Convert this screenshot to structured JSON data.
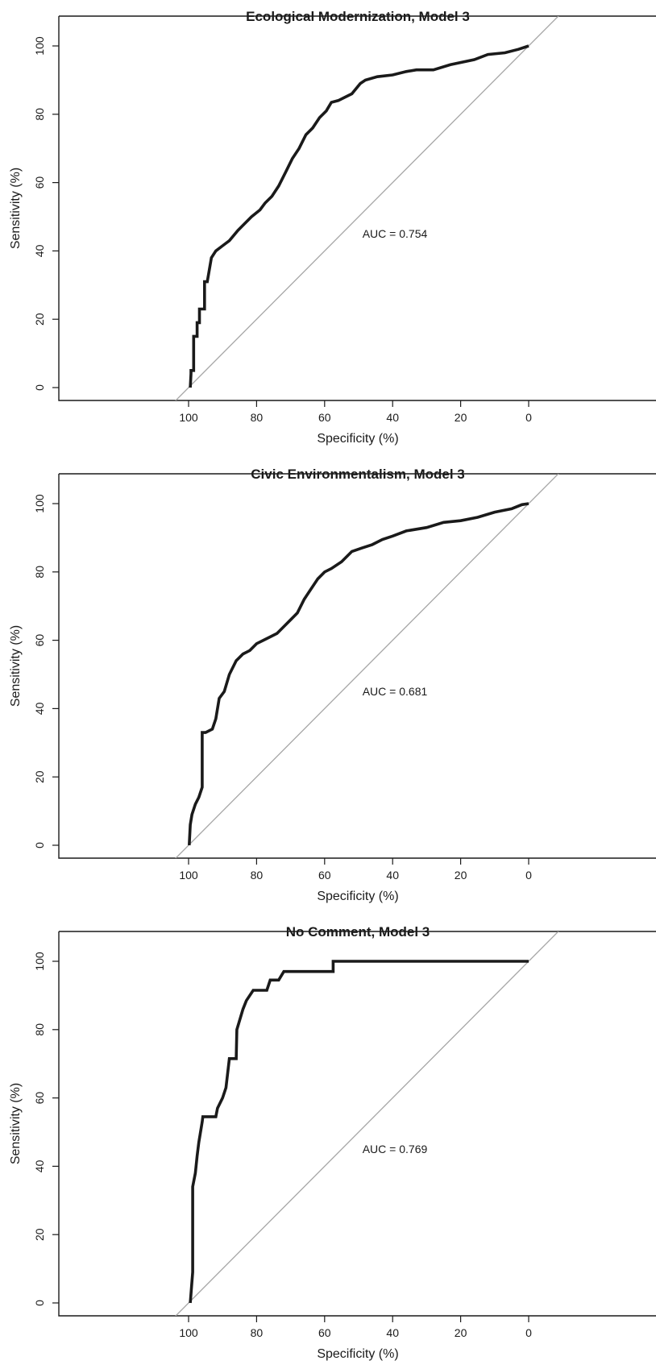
{
  "chart_data": [
    {
      "type": "line",
      "title": "Ecological Modernization, Model 3",
      "xlabel": "Specificity (%)",
      "ylabel": "Sensitivity (%)",
      "xlim": [
        100,
        0
      ],
      "ylim": [
        0,
        100
      ],
      "x_ticks": [
        "100",
        "80",
        "60",
        "40",
        "20",
        "0"
      ],
      "y_ticks": [
        "0",
        "20",
        "40",
        "60",
        "80",
        "100"
      ],
      "annotation": "AUC = 0.754",
      "reference_line": "diagonal",
      "x": [
        99.5,
        99.3,
        99.3,
        98.5,
        98.5,
        97.5,
        97.5,
        96.8,
        96.8,
        95.3,
        95.3,
        94.5,
        93.3,
        92,
        90,
        88,
        85.5,
        83.5,
        81.5,
        79,
        77.5,
        75.5,
        73.5,
        71.5,
        69.5,
        67.5,
        65.5,
        63.5,
        61.5,
        59.5,
        58,
        56,
        54,
        52,
        49.5,
        48,
        44.5,
        40,
        36,
        33,
        28,
        23,
        16,
        12,
        7,
        3,
        0
      ],
      "y": [
        0,
        4,
        5,
        5,
        15,
        15,
        19,
        19,
        23,
        23,
        31,
        31,
        38,
        40,
        41.5,
        43,
        46,
        48,
        50,
        52,
        54,
        56,
        59,
        63,
        67,
        70,
        74,
        76,
        79,
        81,
        83.5,
        84,
        85,
        86,
        89,
        90,
        91,
        91.5,
        92.5,
        93,
        93,
        94.5,
        96,
        97.5,
        98,
        99,
        100
      ]
    },
    {
      "type": "line",
      "title": "Civic Environmentalism, Model 3",
      "xlabel": "Specificity (%)",
      "ylabel": "Sensitivity (%)",
      "xlim": [
        100,
        0
      ],
      "ylim": [
        0,
        100
      ],
      "x_ticks": [
        "100",
        "80",
        "60",
        "40",
        "20",
        "0"
      ],
      "y_ticks": [
        "0",
        "20",
        "40",
        "60",
        "80",
        "100"
      ],
      "annotation": "AUC = 0.681",
      "reference_line": "diagonal",
      "x": [
        99.8,
        99.5,
        99,
        98,
        97,
        96,
        96,
        95,
        93,
        92,
        91,
        89.5,
        88,
        86,
        84,
        82,
        80,
        78,
        76,
        74,
        72,
        70,
        68,
        66,
        64,
        62,
        60,
        58,
        55,
        52,
        49,
        46,
        43,
        40,
        36,
        30,
        25,
        20,
        15,
        10,
        5,
        2,
        0
      ],
      "y": [
        0,
        6,
        9,
        12,
        14,
        17,
        33,
        33,
        34,
        37,
        43,
        45,
        50,
        54,
        56,
        57,
        59,
        60,
        61,
        62,
        64,
        66,
        68,
        72,
        75,
        78,
        80,
        81,
        83,
        86,
        87,
        88,
        89.5,
        90.5,
        92,
        93,
        94.5,
        95,
        96,
        97.5,
        98.5,
        99.7,
        100
      ]
    },
    {
      "type": "line",
      "title": "No Comment, Model 3",
      "xlabel": "Specificity (%)",
      "ylabel": "Sensitivity (%)",
      "xlim": [
        100,
        0
      ],
      "ylim": [
        0,
        100
      ],
      "x_ticks": [
        "100",
        "80",
        "60",
        "40",
        "20",
        "0"
      ],
      "y_ticks": [
        "0",
        "20",
        "40",
        "60",
        "80",
        "100"
      ],
      "annotation": "AUC = 0.769",
      "reference_line": "diagonal",
      "x": [
        99.5,
        98.8,
        98.8,
        98,
        97.5,
        97,
        96,
        95.8,
        95,
        92,
        91.5,
        90,
        89,
        88,
        86,
        85.8,
        84,
        83,
        81,
        77,
        76,
        73.5,
        72,
        69,
        69,
        63,
        57.5,
        57.5,
        40,
        0
      ],
      "y": [
        0,
        9,
        34,
        38,
        43,
        47,
        53,
        54.5,
        54.5,
        54.5,
        57,
        60,
        63,
        71.5,
        71.5,
        80,
        86,
        88.5,
        91.5,
        91.5,
        94.5,
        94.5,
        97,
        97,
        97,
        97,
        97,
        100,
        100,
        100
      ]
    }
  ]
}
